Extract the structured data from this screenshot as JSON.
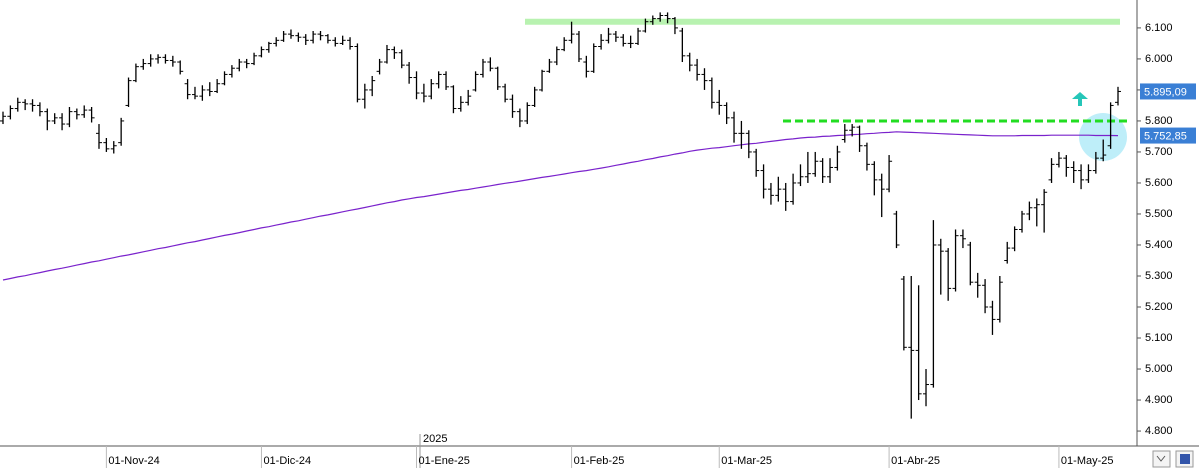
{
  "chart_data": {
    "type": "ohlc",
    "bar_color": "#000000",
    "categories": [
      null,
      null,
      null,
      null,
      null,
      null,
      null,
      null,
      null,
      null,
      null,
      null,
      null,
      null,
      "01-Nov-24",
      null,
      null,
      null,
      null,
      null,
      null,
      null,
      null,
      null,
      null,
      null,
      null,
      null,
      null,
      null,
      null,
      null,
      null,
      null,
      null,
      "01-Dic-24",
      null,
      null,
      null,
      null,
      null,
      null,
      null,
      null,
      null,
      null,
      null,
      null,
      null,
      null,
      null,
      null,
      null,
      null,
      null,
      null,
      "01-Ene-25",
      null,
      null,
      null,
      null,
      null,
      null,
      null,
      null,
      null,
      null,
      null,
      null,
      null,
      null,
      null,
      null,
      null,
      null,
      null,
      null,
      "01-Feb-25",
      null,
      null,
      null,
      null,
      null,
      null,
      null,
      null,
      null,
      null,
      null,
      null,
      null,
      null,
      null,
      null,
      null,
      null,
      null,
      "01-Mar-25",
      null,
      null,
      null,
      null,
      null,
      null,
      null,
      null,
      null,
      null,
      null,
      null,
      null,
      null,
      null,
      null,
      null,
      null,
      null,
      null,
      null,
      null,
      "01-Abr-25",
      null,
      null,
      null,
      null,
      null,
      null,
      null,
      null,
      null,
      null,
      null,
      null,
      null,
      null,
      null,
      null,
      null,
      null,
      null,
      null,
      null,
      null,
      "01-May-25",
      null,
      null,
      null,
      null,
      null,
      null,
      null,
      null
    ],
    "year_label": "2025",
    "ohlc": [
      [
        5800,
        5830,
        5790,
        5815
      ],
      [
        5815,
        5850,
        5805,
        5840
      ],
      [
        5840,
        5875,
        5830,
        5860
      ],
      [
        5860,
        5870,
        5835,
        5855
      ],
      [
        5855,
        5870,
        5830,
        5850
      ],
      [
        5850,
        5860,
        5815,
        5830
      ],
      [
        5830,
        5840,
        5770,
        5800
      ],
      [
        5800,
        5825,
        5790,
        5810
      ],
      [
        5810,
        5825,
        5770,
        5790
      ],
      [
        5790,
        5845,
        5780,
        5830
      ],
      [
        5830,
        5840,
        5805,
        5820
      ],
      [
        5820,
        5850,
        5810,
        5835
      ],
      [
        5835,
        5845,
        5795,
        5810
      ],
      [
        5760,
        5790,
        5710,
        5730
      ],
      [
        5730,
        5745,
        5700,
        5710
      ],
      [
        5710,
        5735,
        5695,
        5720
      ],
      [
        5730,
        5810,
        5720,
        5800
      ],
      [
        5850,
        5940,
        5845,
        5930
      ],
      [
        5930,
        5985,
        5925,
        5975
      ],
      [
        5975,
        6000,
        5965,
        5985
      ],
      [
        5985,
        6015,
        5975,
        6000
      ],
      [
        6000,
        6015,
        5985,
        6005
      ],
      [
        6005,
        6015,
        5985,
        5995
      ],
      [
        5995,
        6010,
        5975,
        5990
      ],
      [
        5990,
        5995,
        5950,
        5960
      ],
      [
        5920,
        5935,
        5870,
        5885
      ],
      [
        5885,
        5910,
        5870,
        5880
      ],
      [
        5880,
        5915,
        5865,
        5900
      ],
      [
        5900,
        5925,
        5880,
        5895
      ],
      [
        5895,
        5935,
        5890,
        5920
      ],
      [
        5920,
        5960,
        5915,
        5950
      ],
      [
        5950,
        5980,
        5940,
        5970
      ],
      [
        5970,
        6000,
        5960,
        5990
      ],
      [
        5990,
        6000,
        5970,
        5985
      ],
      [
        5985,
        6020,
        5980,
        6010
      ],
      [
        6010,
        6040,
        6005,
        6030
      ],
      [
        6030,
        6055,
        6020,
        6050
      ],
      [
        6050,
        6070,
        6040,
        6060
      ],
      [
        6060,
        6090,
        6055,
        6080
      ],
      [
        6080,
        6095,
        6065,
        6075
      ],
      [
        6075,
        6085,
        6055,
        6070
      ],
      [
        6070,
        6080,
        6045,
        6060
      ],
      [
        6060,
        6090,
        6050,
        6080
      ],
      [
        6080,
        6090,
        6060,
        6075
      ],
      [
        6075,
        6080,
        6050,
        6060
      ],
      [
        6060,
        6070,
        6040,
        6050
      ],
      [
        6050,
        6075,
        6045,
        6060
      ],
      [
        6060,
        6070,
        6030,
        6040
      ],
      [
        6040,
        6050,
        5860,
        5870
      ],
      [
        5870,
        5920,
        5840,
        5900
      ],
      [
        5900,
        5945,
        5880,
        5930
      ],
      [
        5960,
        6000,
        5950,
        5990
      ],
      [
        5990,
        6045,
        5985,
        6030
      ],
      [
        6030,
        6040,
        6000,
        6020
      ],
      [
        6020,
        6030,
        5970,
        5980
      ],
      [
        5980,
        5990,
        5920,
        5940
      ],
      [
        5940,
        5960,
        5870,
        5890
      ],
      [
        5890,
        5920,
        5860,
        5880
      ],
      [
        5880,
        5935,
        5870,
        5920
      ],
      [
        5920,
        5960,
        5905,
        5950
      ],
      [
        5950,
        5960,
        5900,
        5910
      ],
      [
        5910,
        5915,
        5825,
        5840
      ],
      [
        5840,
        5880,
        5830,
        5860
      ],
      [
        5860,
        5900,
        5850,
        5880
      ],
      [
        5900,
        5960,
        5895,
        5950
      ],
      [
        5950,
        6000,
        5940,
        5990
      ],
      [
        5990,
        6005,
        5960,
        5970
      ],
      [
        5970,
        5975,
        5900,
        5910
      ],
      [
        5910,
        5920,
        5860,
        5870
      ],
      [
        5870,
        5885,
        5810,
        5830
      ],
      [
        5830,
        5840,
        5780,
        5800
      ],
      [
        5800,
        5860,
        5790,
        5850
      ],
      [
        5850,
        5910,
        5845,
        5900
      ],
      [
        5900,
        5965,
        5895,
        5960
      ],
      [
        5960,
        6000,
        5955,
        5990
      ],
      [
        5990,
        6040,
        5980,
        6030
      ],
      [
        6030,
        6070,
        6025,
        6060
      ],
      [
        6060,
        6120,
        6050,
        6080
      ],
      [
        6080,
        6090,
        5990,
        6000
      ],
      [
        5990,
        6010,
        5940,
        5960
      ],
      [
        5960,
        6050,
        5955,
        6040
      ],
      [
        6040,
        6080,
        6030,
        6060
      ],
      [
        6060,
        6100,
        6050,
        6080
      ],
      [
        6080,
        6090,
        6055,
        6070
      ],
      [
        6070,
        6080,
        6040,
        6050
      ],
      [
        6050,
        6075,
        6035,
        6050
      ],
      [
        6050,
        6100,
        6045,
        6090
      ],
      [
        6090,
        6130,
        6085,
        6120
      ],
      [
        6120,
        6140,
        6110,
        6130
      ],
      [
        6130,
        6150,
        6120,
        6140
      ],
      [
        6140,
        6150,
        6115,
        6130
      ],
      [
        6130,
        6135,
        6080,
        6100
      ],
      [
        6090,
        6100,
        5990,
        6010
      ],
      [
        6010,
        6020,
        5960,
        5980
      ],
      [
        5980,
        6000,
        5930,
        5950
      ],
      [
        5950,
        5970,
        5900,
        5930
      ],
      [
        5930,
        5940,
        5840,
        5860
      ],
      [
        5860,
        5900,
        5820,
        5850
      ],
      [
        5850,
        5860,
        5790,
        5810
      ],
      [
        5810,
        5830,
        5730,
        5760
      ],
      [
        5760,
        5800,
        5710,
        5760
      ],
      [
        5760,
        5770,
        5680,
        5700
      ],
      [
        5700,
        5710,
        5620,
        5640
      ],
      [
        5640,
        5660,
        5550,
        5580
      ],
      [
        5580,
        5600,
        5530,
        5560
      ],
      [
        5560,
        5620,
        5540,
        5580
      ],
      [
        5580,
        5600,
        5510,
        5540
      ],
      [
        5540,
        5630,
        5530,
        5600
      ],
      [
        5600,
        5660,
        5590,
        5620
      ],
      [
        5620,
        5700,
        5600,
        5630
      ],
      [
        5630,
        5700,
        5620,
        5670
      ],
      [
        5670,
        5680,
        5600,
        5620
      ],
      [
        5620,
        5680,
        5600,
        5650
      ],
      [
        5650,
        5720,
        5640,
        5700
      ],
      [
        5740,
        5790,
        5730,
        5770
      ],
      [
        5770,
        5790,
        5750,
        5780
      ],
      [
        5780,
        5785,
        5700,
        5720
      ],
      [
        5720,
        5730,
        5640,
        5660
      ],
      [
        5660,
        5670,
        5560,
        5610
      ],
      [
        5610,
        5630,
        5490,
        5580
      ],
      [
        5580,
        5690,
        5570,
        5670
      ],
      [
        5500,
        5510,
        5390,
        5400
      ],
      [
        5290,
        5300,
        5060,
        5070
      ],
      [
        5070,
        5300,
        4840,
        5060
      ],
      [
        5060,
        5270,
        4900,
        4920
      ],
      [
        4920,
        5000,
        4880,
        4950
      ],
      [
        4950,
        5480,
        4940,
        5400
      ],
      [
        5400,
        5420,
        5240,
        5380
      ],
      [
        5380,
        5390,
        5220,
        5260
      ],
      [
        5260,
        5450,
        5250,
        5430
      ],
      [
        5430,
        5450,
        5390,
        5420
      ],
      [
        5400,
        5410,
        5270,
        5280
      ],
      [
        5280,
        5310,
        5230,
        5270
      ],
      [
        5270,
        5290,
        5180,
        5200
      ],
      [
        5200,
        5220,
        5110,
        5160
      ],
      [
        5160,
        5300,
        5150,
        5280
      ],
      [
        5350,
        5410,
        5340,
        5390
      ],
      [
        5390,
        5460,
        5380,
        5450
      ],
      [
        5450,
        5510,
        5440,
        5500
      ],
      [
        5500,
        5540,
        5480,
        5520
      ],
      [
        5520,
        5550,
        5460,
        5530
      ],
      [
        5530,
        5580,
        5440,
        5570
      ],
      [
        5610,
        5680,
        5600,
        5660
      ],
      [
        5660,
        5700,
        5650,
        5680
      ],
      [
        5680,
        5690,
        5620,
        5650
      ],
      [
        5650,
        5670,
        5600,
        5640
      ],
      [
        5640,
        5660,
        5580,
        5610
      ],
      [
        5610,
        5660,
        5600,
        5640
      ],
      [
        5640,
        5700,
        5630,
        5680
      ],
      [
        5680,
        5740,
        5670,
        5690
      ],
      [
        5720,
        5860,
        5710,
        5850
      ],
      [
        5860,
        5910,
        5850,
        5895.09
      ]
    ],
    "last_close_label": "5.895,09",
    "ma": {
      "color": "#7a22cc",
      "value_label": "5.752,85",
      "values": [
        5287,
        5292,
        5297,
        5301,
        5306,
        5311,
        5316,
        5321,
        5325,
        5330,
        5335,
        5340,
        5345,
        5349,
        5354,
        5359,
        5364,
        5368,
        5373,
        5378,
        5383,
        5388,
        5392,
        5397,
        5402,
        5407,
        5411,
        5416,
        5421,
        5426,
        5431,
        5435,
        5440,
        5445,
        5450,
        5455,
        5459,
        5464,
        5469,
        5474,
        5478,
        5483,
        5488,
        5493,
        5497,
        5502,
        5507,
        5512,
        5516,
        5521,
        5526,
        5531,
        5536,
        5540,
        5545,
        5549,
        5553,
        5556,
        5560,
        5564,
        5568,
        5572,
        5576,
        5579,
        5583,
        5587,
        5591,
        5595,
        5599,
        5602,
        5606,
        5610,
        5614,
        5618,
        5621,
        5625,
        5629,
        5633,
        5637,
        5640,
        5644,
        5648,
        5652,
        5657,
        5661,
        5666,
        5670,
        5675,
        5679,
        5684,
        5688,
        5693,
        5697,
        5702,
        5706,
        5709,
        5712,
        5714,
        5717,
        5720,
        5723,
        5726,
        5728,
        5731,
        5734,
        5737,
        5740,
        5742,
        5745,
        5747,
        5748,
        5750,
        5751,
        5753,
        5754,
        5756,
        5757,
        5759,
        5760,
        5762,
        5763,
        5765,
        5764,
        5763,
        5762,
        5761,
        5760,
        5759,
        5758,
        5757,
        5756,
        5755,
        5754,
        5753,
        5752,
        5752,
        5752,
        5752,
        5753,
        5753,
        5753,
        5753,
        5754,
        5754,
        5754,
        5754,
        5754,
        5754,
        5753,
        5753,
        5753,
        5752.85
      ]
    },
    "levels": [
      {
        "value": 6120,
        "color": "#b8f2b0",
        "dash": false
      },
      {
        "value": 5800,
        "color": "#22dd22",
        "dash": true
      }
    ],
    "label_color": "#3a7fd5",
    "ylim": [
      4755,
      6190
    ],
    "yticks": [
      {
        "value": 4800,
        "label": "4.800"
      },
      {
        "value": 4900,
        "label": "4.900"
      },
      {
        "value": 5000,
        "label": "5.000"
      },
      {
        "value": 5100,
        "label": "5.100"
      },
      {
        "value": 5200,
        "label": "5.200"
      },
      {
        "value": 5300,
        "label": "5.300"
      },
      {
        "value": 5400,
        "label": "5.400"
      },
      {
        "value": 5500,
        "label": "5.500"
      },
      {
        "value": 5600,
        "label": "5.600"
      },
      {
        "value": 5700,
        "label": "5.700"
      },
      {
        "value": 5800,
        "label": "5.800"
      },
      {
        "value": 5900,
        "label": "5.900"
      },
      {
        "value": 6000,
        "label": "6.000"
      },
      {
        "value": 6100,
        "label": "6.100"
      }
    ]
  }
}
